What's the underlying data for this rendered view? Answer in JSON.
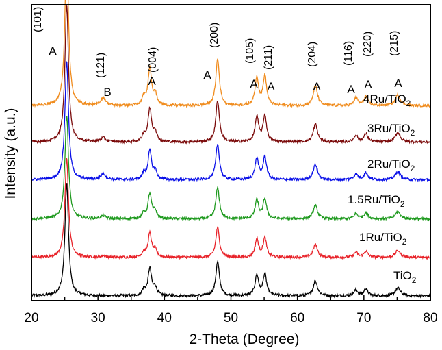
{
  "chart_data": {
    "type": "line",
    "title": "",
    "xlabel": "2-Theta (Degree)",
    "ylabel": "Intensity (a.u.)",
    "xlim": [
      20,
      80
    ],
    "xticks": [
      20,
      30,
      40,
      50,
      60,
      70,
      80
    ],
    "yticks_shown": false,
    "peaks": [
      {
        "pos": 25.3,
        "h": 1.0,
        "w": 0.32
      },
      {
        "pos": 30.8,
        "h": 0.05,
        "w": 0.45
      },
      {
        "pos": 36.9,
        "h": 0.05,
        "w": 0.3
      },
      {
        "pos": 37.8,
        "h": 0.24,
        "w": 0.32
      },
      {
        "pos": 38.6,
        "h": 0.07,
        "w": 0.3
      },
      {
        "pos": 48.0,
        "h": 0.3,
        "w": 0.33
      },
      {
        "pos": 53.9,
        "h": 0.18,
        "w": 0.32
      },
      {
        "pos": 55.1,
        "h": 0.19,
        "w": 0.32
      },
      {
        "pos": 62.7,
        "h": 0.13,
        "w": 0.38
      },
      {
        "pos": 68.8,
        "h": 0.05,
        "w": 0.35
      },
      {
        "pos": 70.3,
        "h": 0.06,
        "w": 0.35
      },
      {
        "pos": 75.1,
        "h": 0.07,
        "w": 0.45
      }
    ],
    "series": [
      {
        "name": "TiO2",
        "base": "TiO",
        "sub": "2",
        "color": "#000000",
        "baseline": 0.0,
        "scale": 1.0,
        "b_peak": 0.0
      },
      {
        "name": "1Ru/TiO2",
        "base": "1Ru/TiO",
        "sub": "2",
        "color": "#e8232a",
        "baseline": 0.55,
        "scale": 0.88,
        "b_peak": 0.3
      },
      {
        "name": "1.5Ru/TiO2",
        "base": "1.5Ru/TiO",
        "sub": "2",
        "color": "#1f9a1f",
        "baseline": 1.1,
        "scale": 0.92,
        "b_peak": 0.6
      },
      {
        "name": "2Ru/TiO2",
        "base": "2Ru/TiO",
        "sub": "2",
        "color": "#0a10e8",
        "baseline": 1.66,
        "scale": 1.05,
        "b_peak": 1.0
      },
      {
        "name": "3Ru/TiO2",
        "base": "3Ru/TiO",
        "sub": "2",
        "color": "#7b0b0b",
        "baseline": 2.2,
        "scale": 1.22,
        "b_peak": 0.6
      },
      {
        "name": "4Ru/TiO2",
        "base": "4Ru/TiO",
        "sub": "2",
        "color": "#f08c1e",
        "baseline": 2.72,
        "scale": 1.38,
        "b_peak": 1.0
      }
    ],
    "annotations": [
      {
        "hkl": "(101)",
        "phase": "A",
        "x": 25.3
      },
      {
        "hkl": "(121)",
        "phase": "B",
        "x": 30.8
      },
      {
        "hkl": "(004)",
        "phase": "A",
        "x": 37.8
      },
      {
        "hkl": "(200)",
        "phase": "A",
        "x": 48.0
      },
      {
        "hkl": "(105)",
        "phase": "A",
        "x": 53.9
      },
      {
        "hkl": "(211)",
        "phase": "A",
        "x": 55.1
      },
      {
        "hkl": "(204)",
        "phase": "A",
        "x": 62.7
      },
      {
        "hkl": "(116)",
        "phase": "A",
        "x": 68.8
      },
      {
        "hkl": "(220)",
        "phase": "A",
        "x": 70.3
      },
      {
        "hkl": "(215)",
        "phase": "A",
        "x": 75.1
      }
    ]
  }
}
